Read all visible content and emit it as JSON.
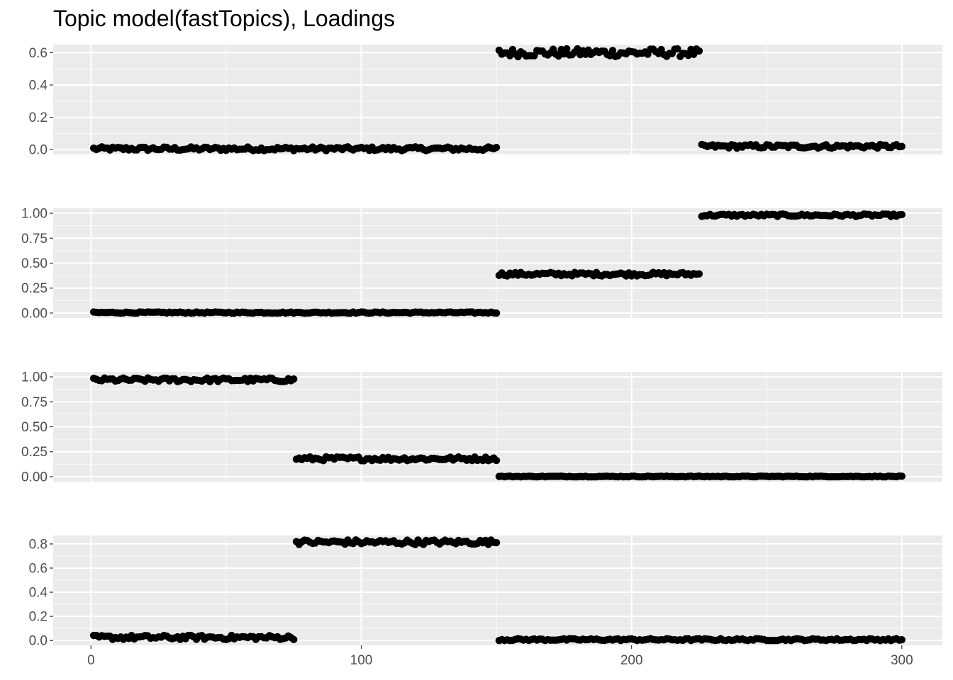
{
  "title": "Topic model(fastTopics), Loadings",
  "colors": {
    "panel_background": "#ebebeb",
    "grid_major": "#ffffff",
    "point": "#000000",
    "tick_label": "#4d4d4d"
  },
  "chart_data": {
    "type": "scatter",
    "title": "Topic model(fastTopics), Loadings",
    "xlabel": "",
    "ylabel": "",
    "x_range": [
      1,
      300
    ],
    "xlim": [
      -14,
      315
    ],
    "x_ticks": [
      0,
      100,
      200,
      300
    ],
    "x_tick_labels": [
      "0",
      "100",
      "200",
      "300"
    ],
    "grid": true,
    "legend": "none",
    "panels": [
      {
        "ylim": [
          -0.03,
          0.65
        ],
        "y_ticks": [
          0.0,
          0.2,
          0.4,
          0.6
        ],
        "y_tick_labels": [
          "0.0",
          "0.2",
          "0.4",
          "0.6"
        ],
        "segments": [
          {
            "x_start": 1,
            "x_end": 150,
            "value": 0.005,
            "noise": 0.012
          },
          {
            "x_start": 151,
            "x_end": 225,
            "value": 0.6,
            "noise": 0.025
          },
          {
            "x_start": 226,
            "x_end": 300,
            "value": 0.02,
            "noise": 0.012
          }
        ]
      },
      {
        "ylim": [
          -0.05,
          1.05
        ],
        "y_ticks": [
          0.0,
          0.25,
          0.5,
          0.75,
          1.0
        ],
        "y_tick_labels": [
          "0.00",
          "0.25",
          "0.50",
          "0.75",
          "1.00"
        ],
        "segments": [
          {
            "x_start": 1,
            "x_end": 150,
            "value": 0.005,
            "noise": 0.006
          },
          {
            "x_start": 151,
            "x_end": 225,
            "value": 0.39,
            "noise": 0.018
          },
          {
            "x_start": 226,
            "x_end": 300,
            "value": 0.98,
            "noise": 0.012
          }
        ]
      },
      {
        "ylim": [
          -0.05,
          1.05
        ],
        "y_ticks": [
          0.0,
          0.25,
          0.5,
          0.75,
          1.0
        ],
        "y_tick_labels": [
          "0.00",
          "0.25",
          "0.50",
          "0.75",
          "1.00"
        ],
        "segments": [
          {
            "x_start": 1,
            "x_end": 75,
            "value": 0.97,
            "noise": 0.02
          },
          {
            "x_start": 76,
            "x_end": 150,
            "value": 0.18,
            "noise": 0.02
          },
          {
            "x_start": 151,
            "x_end": 300,
            "value": 0.002,
            "noise": 0.004
          }
        ]
      },
      {
        "ylim": [
          -0.04,
          0.87
        ],
        "y_ticks": [
          0.0,
          0.2,
          0.4,
          0.6,
          0.8
        ],
        "y_tick_labels": [
          "0.0",
          "0.2",
          "0.4",
          "0.6",
          "0.8"
        ],
        "segments": [
          {
            "x_start": 1,
            "x_end": 75,
            "value": 0.025,
            "noise": 0.018
          },
          {
            "x_start": 76,
            "x_end": 150,
            "value": 0.815,
            "noise": 0.02
          },
          {
            "x_start": 151,
            "x_end": 300,
            "value": 0.007,
            "noise": 0.008
          }
        ]
      }
    ]
  }
}
